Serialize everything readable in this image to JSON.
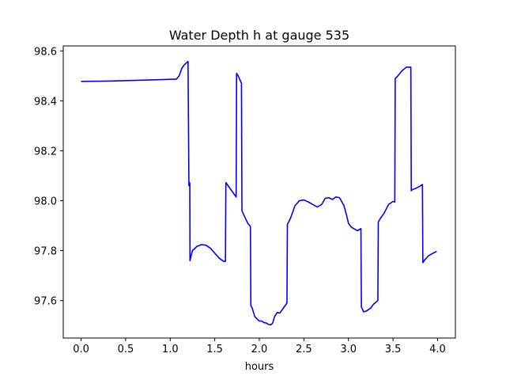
{
  "chart_data": {
    "type": "line",
    "title": "Water Depth h at gauge 535",
    "xlabel": "hours",
    "ylabel": "",
    "xlim": [
      -0.2,
      4.2
    ],
    "ylim": [
      97.45,
      98.62
    ],
    "grid": false,
    "legend": "none",
    "x_ticks": [
      0.0,
      0.5,
      1.0,
      1.5,
      2.0,
      2.5,
      3.0,
      3.5,
      4.0
    ],
    "x_tick_labels": [
      "0.0",
      "0.5",
      "1.0",
      "1.5",
      "2.0",
      "2.5",
      "3.0",
      "3.5",
      "4.0"
    ],
    "y_ticks": [
      97.6,
      97.8,
      98.0,
      98.2,
      98.4,
      98.6
    ],
    "y_tick_labels": [
      "97.6",
      "97.8",
      "98.0",
      "98.2",
      "98.4",
      "98.6"
    ],
    "series": [
      {
        "color": "#0000ff",
        "x": [
          0.0,
          0.3,
          0.6,
          0.9,
          1.07,
          1.1,
          1.13,
          1.16,
          1.2,
          1.21,
          1.212,
          1.22,
          1.222,
          1.235,
          1.25,
          1.3,
          1.35,
          1.4,
          1.45,
          1.5,
          1.55,
          1.6,
          1.62,
          1.625,
          1.65,
          1.7,
          1.74,
          1.745,
          1.76,
          1.8,
          1.805,
          1.83,
          1.87,
          1.9,
          1.905,
          1.92,
          1.95,
          2.0,
          2.03,
          2.05,
          2.08,
          2.1,
          2.13,
          2.15,
          2.17,
          2.2,
          2.23,
          2.27,
          2.31,
          2.315,
          2.35,
          2.4,
          2.45,
          2.5,
          2.55,
          2.6,
          2.65,
          2.7,
          2.74,
          2.78,
          2.82,
          2.86,
          2.9,
          2.95,
          2.98,
          3.0,
          3.03,
          3.06,
          3.1,
          3.14,
          3.145,
          3.17,
          3.2,
          3.25,
          3.28,
          3.33,
          3.335,
          3.36,
          3.4,
          3.45,
          3.5,
          3.52,
          3.525,
          3.55,
          3.6,
          3.65,
          3.7,
          3.705,
          3.72,
          3.76,
          3.8,
          3.83,
          3.835,
          3.86,
          3.9,
          3.95,
          3.99
        ],
        "y": [
          98.478,
          98.479,
          98.482,
          98.485,
          98.487,
          98.5,
          98.53,
          98.545,
          98.558,
          98.06,
          98.075,
          98.07,
          97.76,
          97.78,
          97.8,
          97.817,
          97.824,
          97.822,
          97.81,
          97.79,
          97.77,
          97.757,
          97.757,
          98.073,
          98.06,
          98.035,
          98.015,
          98.51,
          98.502,
          98.47,
          97.96,
          97.94,
          97.91,
          97.897,
          97.58,
          97.57,
          97.535,
          97.518,
          97.518,
          97.512,
          97.51,
          97.505,
          97.503,
          97.51,
          97.535,
          97.552,
          97.55,
          97.57,
          97.59,
          97.905,
          97.93,
          97.98,
          98.0,
          98.003,
          97.995,
          97.985,
          97.975,
          97.985,
          98.01,
          98.012,
          98.005,
          98.015,
          98.012,
          97.98,
          97.94,
          97.91,
          97.895,
          97.888,
          97.88,
          97.888,
          97.575,
          97.555,
          97.558,
          97.57,
          97.585,
          97.6,
          97.915,
          97.93,
          97.95,
          97.985,
          97.997,
          97.995,
          98.49,
          98.498,
          98.52,
          98.535,
          98.535,
          98.04,
          98.045,
          98.05,
          98.058,
          98.065,
          97.752,
          97.765,
          97.78,
          97.79,
          97.797
        ]
      }
    ]
  }
}
